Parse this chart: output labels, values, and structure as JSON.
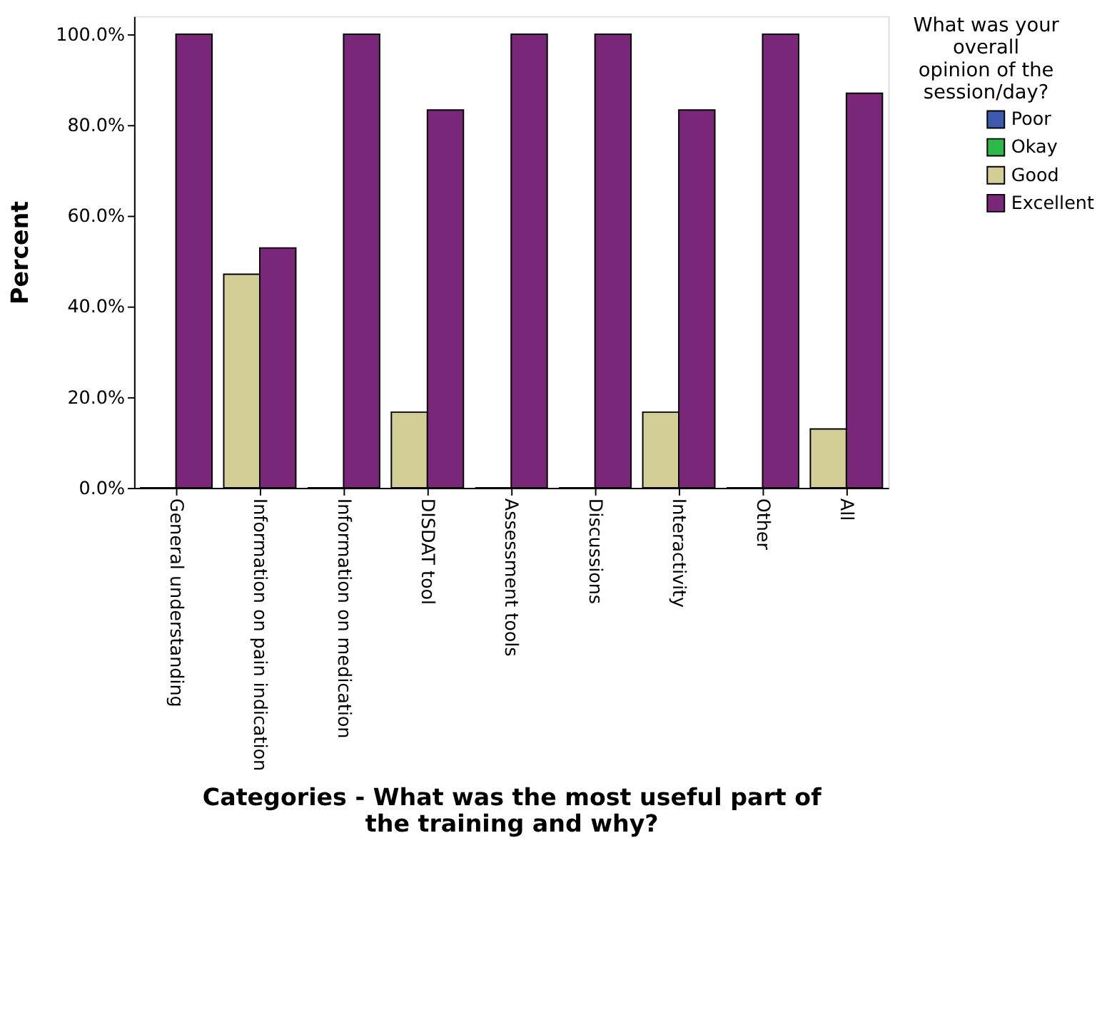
{
  "chart_data": {
    "type": "bar",
    "xlabel": "Categories - What was the most useful part of the training and why?",
    "ylabel": "Percent",
    "legend_title": "What was your overall opinion of the session/day?",
    "categories": [
      "General understanding",
      "Information on pain indication",
      "Information on medication",
      "DISDAT tool",
      "Assessment tools",
      "Discussions",
      "Interactivity",
      "Other",
      "All"
    ],
    "series": [
      {
        "name": "Poor",
        "color": "#3e5aae",
        "values": [
          null,
          null,
          null,
          null,
          null,
          null,
          null,
          null,
          null
        ]
      },
      {
        "name": "Okay",
        "color": "#2db84a",
        "values": [
          null,
          null,
          null,
          null,
          null,
          null,
          null,
          null,
          null
        ]
      },
      {
        "name": "Good",
        "color": "#d3ce96",
        "values": [
          0,
          47.1,
          0,
          16.7,
          0,
          0,
          16.7,
          0,
          13.0
        ]
      },
      {
        "name": "Excellent",
        "color": "#7b2779",
        "values": [
          100,
          52.9,
          100,
          83.3,
          100,
          100,
          83.3,
          100,
          87.0
        ]
      }
    ],
    "ylim": [
      0,
      104
    ],
    "yticks": [
      {
        "value": 0,
        "label": "0.0%"
      },
      {
        "value": 20,
        "label": "20.0%"
      },
      {
        "value": 40,
        "label": "40.0%"
      },
      {
        "value": 60,
        "label": "60.0%"
      },
      {
        "value": 80,
        "label": "80.0%"
      },
      {
        "value": 100,
        "label": "100.0%"
      }
    ],
    "grid": false,
    "legend": "top right"
  }
}
